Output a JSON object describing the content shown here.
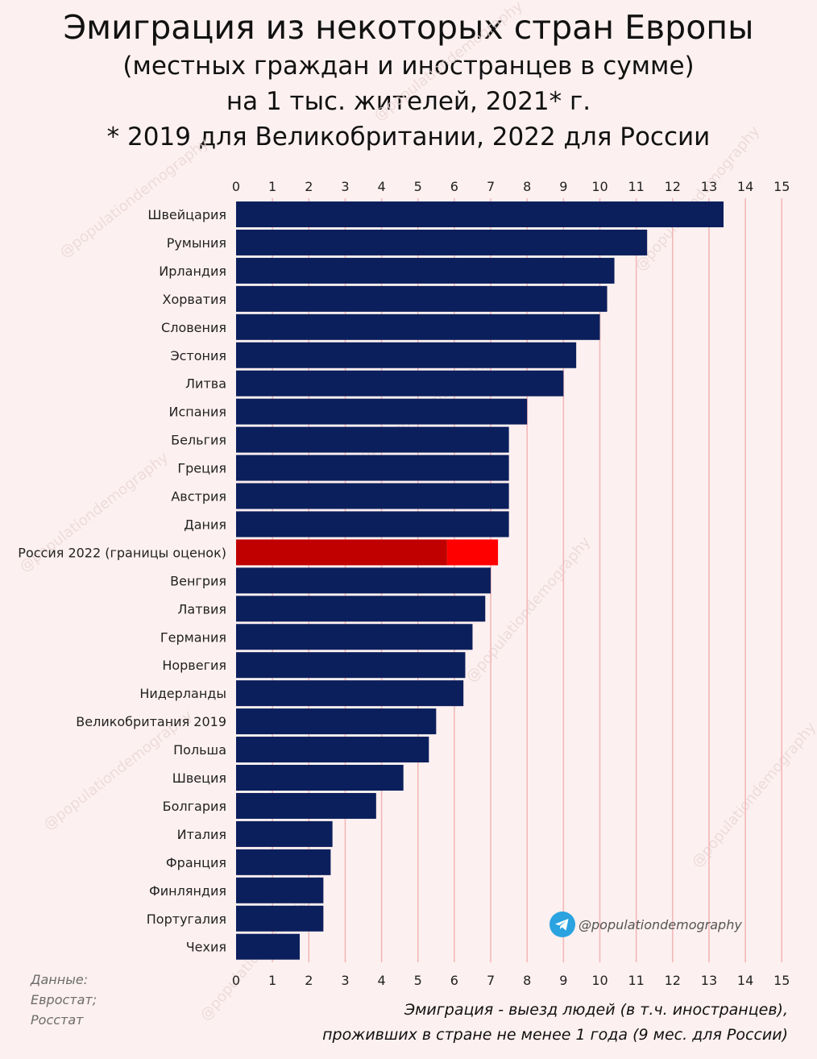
{
  "title": "Эмиграция из некоторых стран Европы",
  "subtitle_lines": [
    "(местных граждан и иностранцев в сумме)",
    "на 1 тыс. жителей, 2021* г.",
    "* 2019 для Великобритании, 2022 для России"
  ],
  "source_lines": [
    "Данные:",
    "Евростат;",
    "Росстат"
  ],
  "note_lines": [
    "Эмиграция - выезд людей (в т.ч. иностранцев),",
    "проживших в стране не менее 1 года (9 мес. для России)"
  ],
  "watermark": "@populationdemography",
  "colors": {
    "bar": "#0b1f5c",
    "russia_low": "#c00000",
    "russia_high": "#ff0000",
    "grid": "#f2b5b5",
    "background": "#fdf0f0"
  },
  "chart_data": {
    "type": "bar",
    "orientation": "horizontal",
    "xlim": [
      0,
      15
    ],
    "xticks": [
      "0",
      "1",
      "2",
      "3",
      "4",
      "5",
      "6",
      "7",
      "8",
      "9",
      "10",
      "11",
      "12",
      "13",
      "14",
      "15"
    ],
    "axis_position": "top and bottom",
    "grid": true,
    "categories": [
      "Швейцария",
      "Румыния",
      "Ирландия",
      "Хорватия",
      "Словения",
      "Эстония",
      "Литва",
      "Испания",
      "Бельгия",
      "Греция",
      "Австрия",
      "Дания",
      "Россия 2022 (границы оценок)",
      "Венгрия",
      "Латвия",
      "Германия",
      "Норвегия",
      "Нидерланды",
      "Великобритания 2019",
      "Польша",
      "Швеция",
      "Болгария",
      "Италия",
      "Франция",
      "Финляндия",
      "Португалия",
      "Чехия"
    ],
    "values": [
      13.4,
      11.3,
      10.4,
      10.2,
      10.0,
      9.35,
      9.0,
      8.0,
      7.5,
      7.5,
      7.5,
      7.5,
      5.8,
      7.0,
      6.85,
      6.5,
      6.3,
      6.25,
      5.5,
      5.3,
      4.6,
      3.85,
      2.65,
      2.6,
      2.4,
      2.4,
      1.75
    ],
    "russia_range": {
      "category": "Россия 2022 (границы оценок)",
      "low": 5.8,
      "high": 7.2
    }
  }
}
